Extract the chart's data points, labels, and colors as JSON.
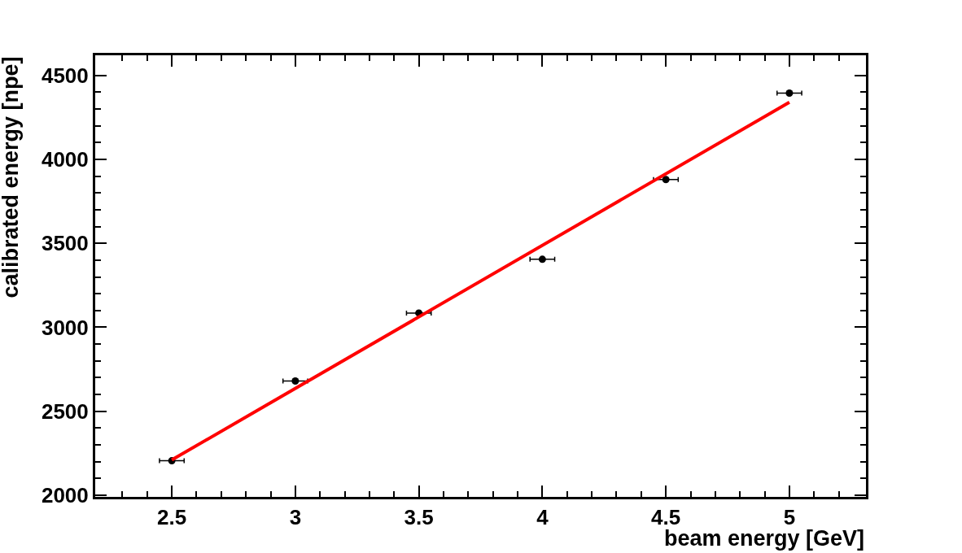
{
  "chart_data": {
    "type": "scatter",
    "xlabel": "beam energy [GeV]",
    "ylabel": "calibrated energy [npe]",
    "xlim": [
      2.19,
      5.31
    ],
    "ylim": [
      1990,
      4620
    ],
    "xticks": [
      2.5,
      3,
      3.5,
      4,
      4.5,
      5
    ],
    "yticks": [
      2000,
      2500,
      3000,
      3500,
      4000,
      4500
    ],
    "marker": "circle",
    "series": [
      {
        "color": "#000000",
        "x": [
          2.5,
          3,
          3.5,
          4,
          4.5,
          5
        ],
        "values": [
          2205,
          2680,
          3085,
          3405,
          3880,
          4395
        ],
        "xerrors": [
          0.05,
          0.05,
          0.05,
          0.05,
          0.05,
          0.05
        ]
      },
      {
        "type": "line",
        "color": "#ff0000",
        "marker": "none",
        "line_style": "solid",
        "x": [
          2.5,
          5
        ],
        "values": [
          2210,
          4340
        ]
      }
    ]
  }
}
